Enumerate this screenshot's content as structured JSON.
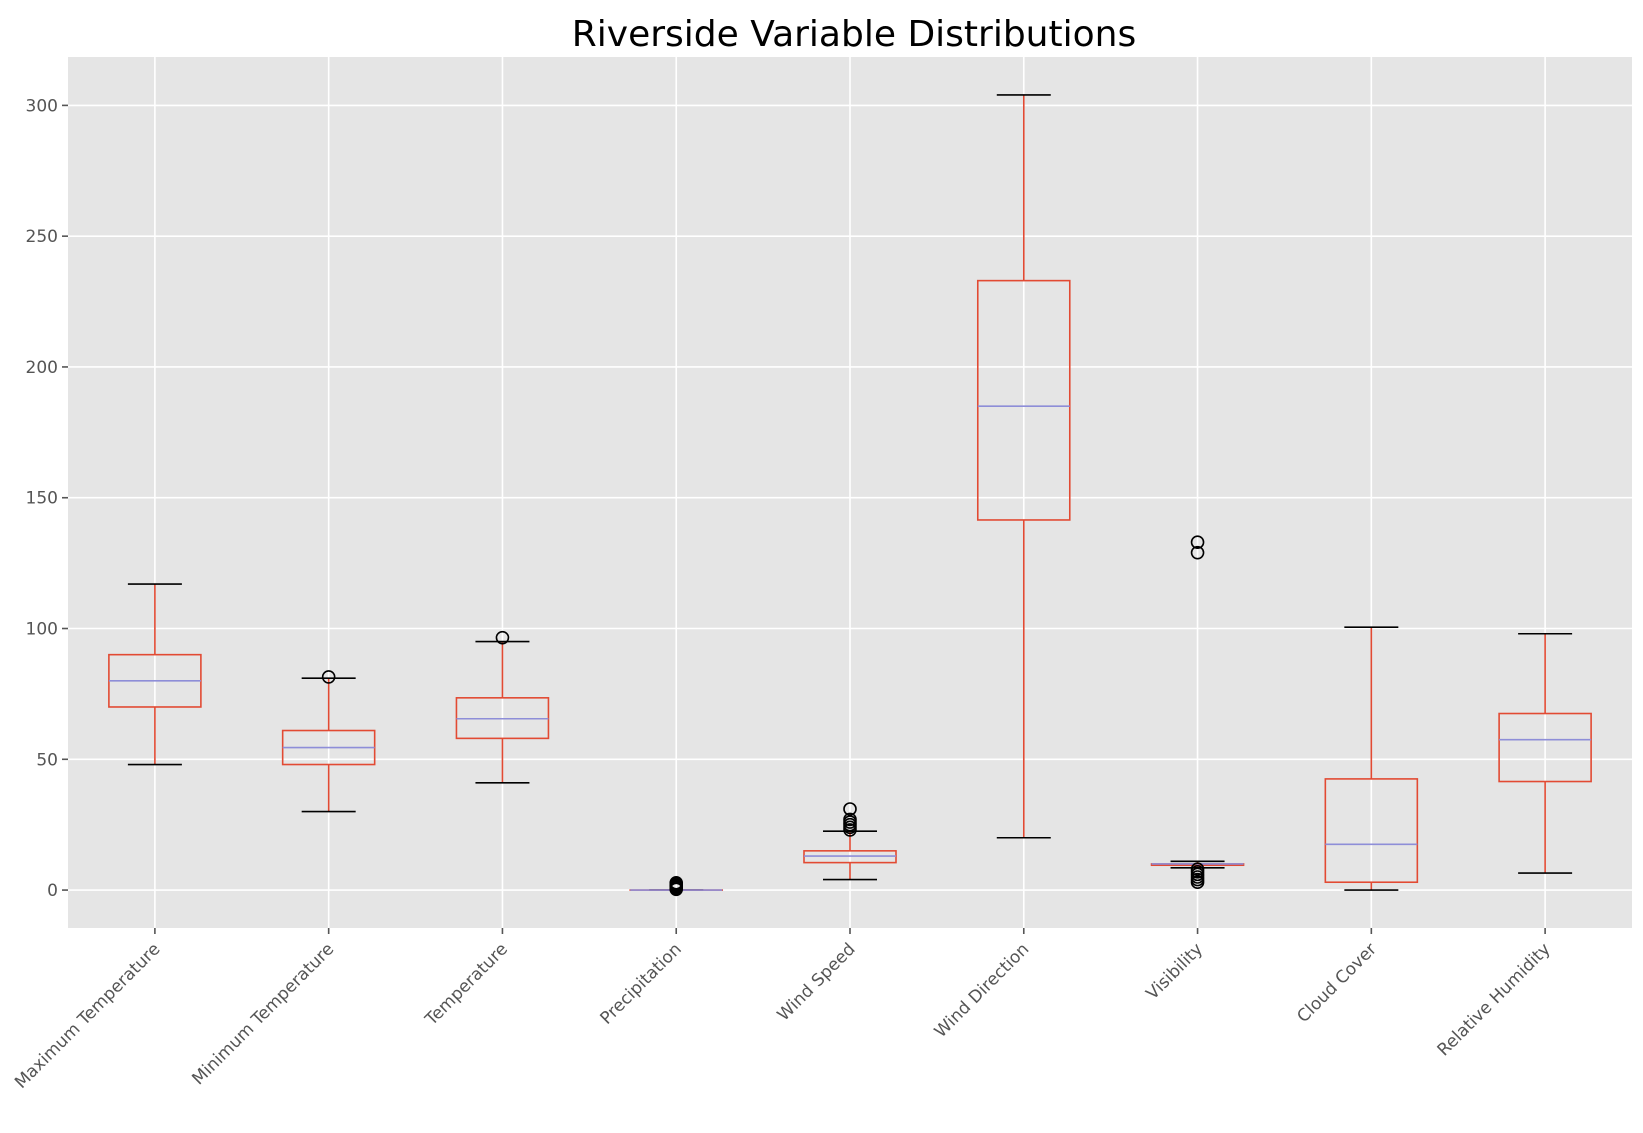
{
  "chart_data": {
    "type": "box",
    "title": "Riverside Variable Distributions",
    "xlabel": "",
    "ylabel": "",
    "ylim": [
      -14.5,
      318.5
    ],
    "yticks": [
      0,
      50,
      100,
      150,
      200,
      250,
      300
    ],
    "ytick_labels": [
      "0",
      "50",
      "100",
      "150",
      "200",
      "250",
      "300"
    ],
    "grid": true,
    "colors": {
      "background": "#e5e5e5",
      "grid": "#ffffff",
      "box": "#e24a33",
      "median": "#8e8ed8",
      "cap": "#000000",
      "flier": "#000000"
    },
    "series": [
      {
        "name": "Maximum Temperature",
        "whislo": 48,
        "q1": 70,
        "med": 80,
        "q3": 90,
        "whishi": 117,
        "fliers": []
      },
      {
        "name": "Minimum Temperature",
        "whislo": 30,
        "q1": 48,
        "med": 54.5,
        "q3": 61,
        "whishi": 81,
        "fliers": [
          81.5
        ]
      },
      {
        "name": "Temperature",
        "whislo": 41,
        "q1": 58,
        "med": 65.5,
        "q3": 73.5,
        "whishi": 95,
        "fliers": [
          96.5
        ]
      },
      {
        "name": "Precipitation",
        "whislo": 0,
        "q1": 0,
        "med": 0,
        "q3": 0,
        "whishi": 0,
        "fliers": [
          0.3,
          0.8,
          1.3,
          1.8,
          2.3,
          2.8
        ]
      },
      {
        "name": "Wind Speed",
        "whislo": 4,
        "q1": 10.5,
        "med": 13,
        "q3": 15,
        "whishi": 22.5,
        "fliers": [
          23,
          24,
          25,
          26,
          27,
          31
        ]
      },
      {
        "name": "Wind Direction",
        "whislo": 20,
        "q1": 141.5,
        "med": 185,
        "q3": 233,
        "whishi": 304,
        "fliers": []
      },
      {
        "name": "Visibility",
        "whislo": 8.5,
        "q1": 9.5,
        "med": 10,
        "q3": 10,
        "whishi": 11,
        "fliers": [
          3,
          4,
          5,
          6,
          7,
          8,
          129,
          133
        ]
      },
      {
        "name": "Cloud Cover",
        "whislo": 0,
        "q1": 3,
        "med": 17.5,
        "q3": 42.5,
        "whishi": 100.5,
        "fliers": []
      },
      {
        "name": "Relative Humidity",
        "whislo": 6.5,
        "q1": 41.5,
        "med": 57.5,
        "q3": 67.5,
        "whishi": 98,
        "fliers": []
      }
    ]
  }
}
